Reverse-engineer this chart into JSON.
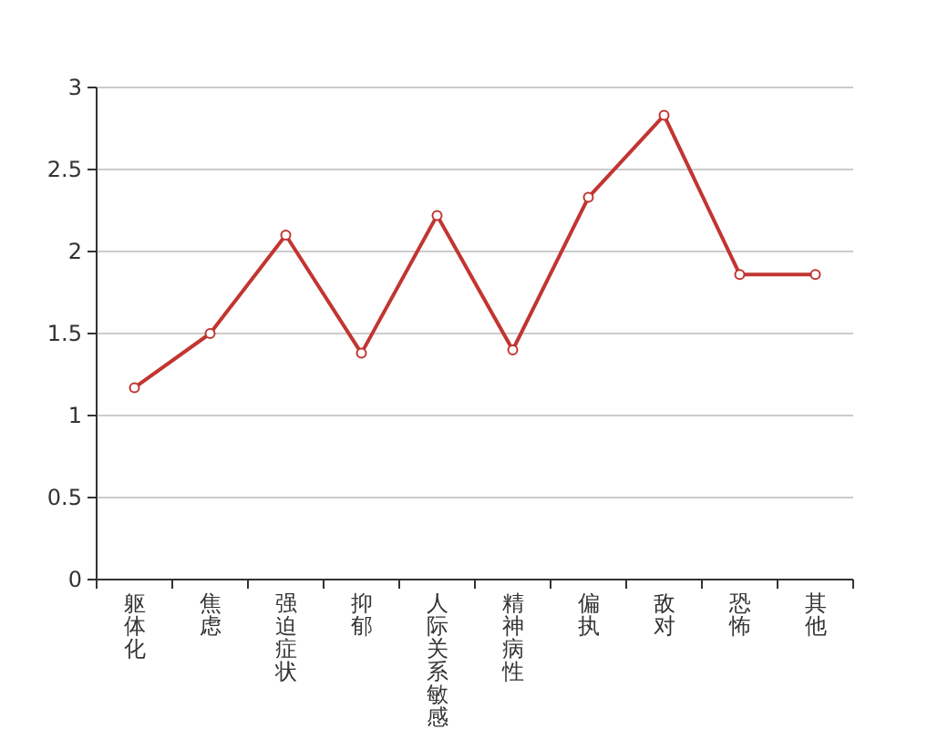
{
  "chart_data": {
    "type": "line",
    "categories": [
      "躯体化",
      "焦虑",
      "强迫症状",
      "抑郁",
      "人际关系敏感",
      "精神病性",
      "偏执",
      "敌对",
      "恐怖",
      "其他"
    ],
    "values": [
      1.17,
      1.5,
      2.1,
      1.38,
      2.22,
      1.4,
      2.33,
      2.83,
      1.86,
      1.86
    ],
    "color": "#c23531",
    "marker": "circle",
    "grid": "y",
    "ylim": [
      0,
      3
    ],
    "yticks": [
      0,
      0.5,
      1,
      1.5,
      2,
      2.5,
      3
    ]
  }
}
